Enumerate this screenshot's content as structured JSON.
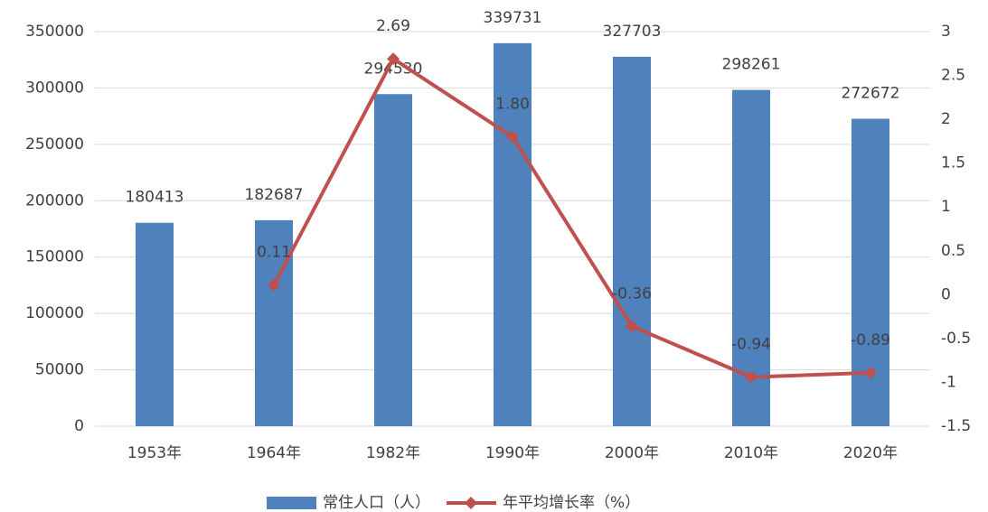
{
  "chart_data": {
    "type": "bar",
    "categories": [
      "1953年",
      "1964年",
      "1982年",
      "1990年",
      "2000年",
      "2010年",
      "2020年"
    ],
    "series": [
      {
        "name": "常住人口（人）",
        "type": "bar",
        "color": "#4f81bd",
        "values": [
          180413,
          182687,
          294530,
          339731,
          327703,
          298261,
          272672
        ]
      },
      {
        "name": "年平均增长率（%）",
        "type": "line",
        "axis": "y2",
        "color": "#c0504d",
        "values": [
          null,
          0.11,
          2.69,
          1.8,
          -0.36,
          -0.94,
          -0.89
        ],
        "value_labels": [
          null,
          "0.11",
          "2.69",
          "1.80",
          "-0.36",
          "-0.94",
          "-0.89"
        ]
      }
    ],
    "ylim": [
      0,
      350000
    ],
    "yticks": [
      0,
      50000,
      100000,
      150000,
      200000,
      250000,
      300000,
      350000
    ],
    "y2lim": [
      -1.5,
      3
    ],
    "y2ticks": [
      -1.5,
      -1,
      -0.5,
      0,
      0.5,
      1,
      1.5,
      2,
      2.5,
      3
    ],
    "grid": true,
    "legend": "bottom"
  }
}
